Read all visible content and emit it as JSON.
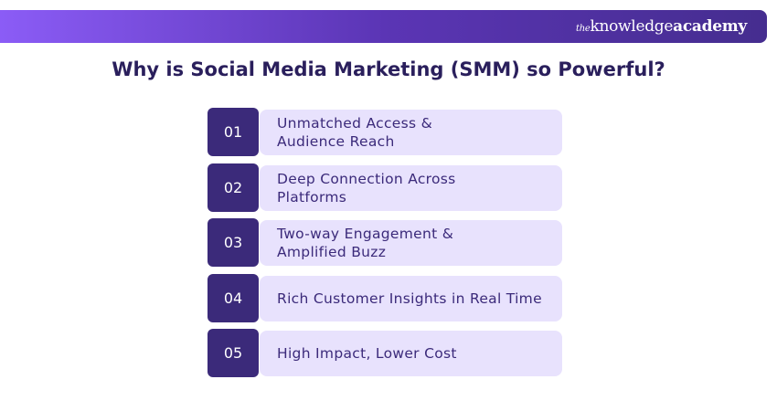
{
  "brand": {
    "prefix": "the",
    "name": "knowledge",
    "bold": "academy"
  },
  "title": "Why is Social Media Marketing (SMM) so Powerful?",
  "items": [
    {
      "number": "01",
      "label": "Unmatched Access & Audience Reach"
    },
    {
      "number": "02",
      "label": "Deep Connection Across Platforms"
    },
    {
      "number": "03",
      "label": "Two-way Engagement & Amplified Buzz"
    },
    {
      "number": "04",
      "label": "Rich Customer Insights in Real Time"
    },
    {
      "number": "05",
      "label": "High Impact, Lower Cost"
    }
  ],
  "colors": {
    "dark": "#3b2a7a",
    "light": "#e8e2fd",
    "title": "#2a1f5c"
  }
}
